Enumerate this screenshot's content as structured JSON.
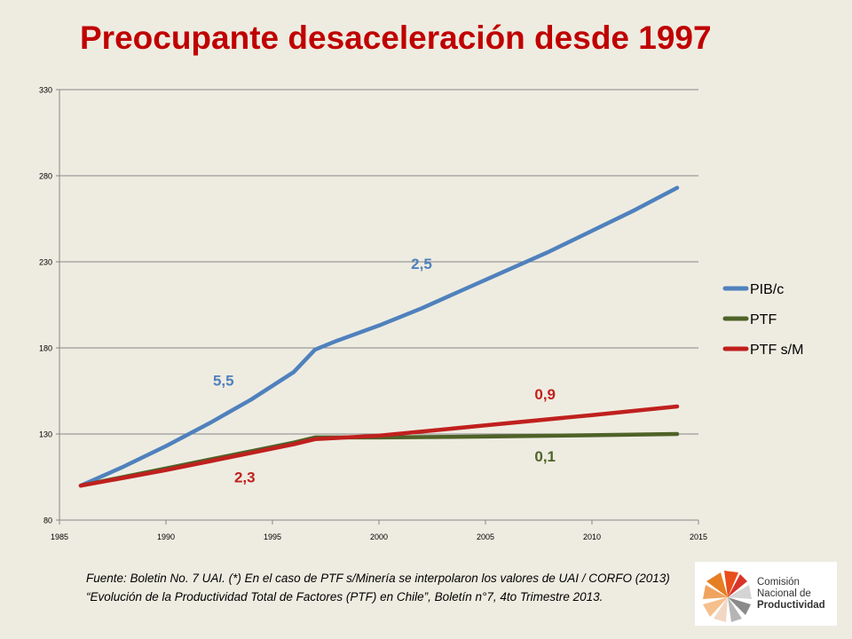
{
  "title": "Preocupante desaceleración desde 1997",
  "source_note": "Fuente: Boletin No. 7 UAI. (*) En el caso de PTF s/Minería se interpolaron los valores de UAI / CORFO (2013) “Evolución de la Productividad Total de Factores (PTF) en Chile”, Boletín n°7, 4to Trimestre 2013.",
  "logo": {
    "line1": "Comisión",
    "line2": "Nacional de",
    "line3": "Productividad"
  },
  "chart_data": {
    "type": "line",
    "xlim": [
      1985,
      2015
    ],
    "ylim": [
      80,
      330
    ],
    "x_ticks": [
      1985,
      1990,
      1995,
      2000,
      2005,
      2010,
      2015
    ],
    "y_ticks": [
      80,
      130,
      180,
      230,
      280,
      330
    ],
    "grid": "horizontal",
    "legend_position": "right",
    "series": [
      {
        "name": "PIB/c",
        "color": "#4f81bd",
        "points": [
          [
            1986,
            100
          ],
          [
            1988,
            111
          ],
          [
            1990,
            123
          ],
          [
            1992,
            136
          ],
          [
            1994,
            150
          ],
          [
            1996,
            166
          ],
          [
            1997,
            179
          ],
          [
            1998,
            184
          ],
          [
            2000,
            193
          ],
          [
            2002,
            203
          ],
          [
            2004,
            214
          ],
          [
            2006,
            225
          ],
          [
            2008,
            236
          ],
          [
            2010,
            248
          ],
          [
            2012,
            260
          ],
          [
            2014,
            273
          ]
        ]
      },
      {
        "name": "PTF",
        "color": "#4f6228",
        "points": [
          [
            1986,
            100
          ],
          [
            1988,
            105
          ],
          [
            1990,
            110
          ],
          [
            1992,
            115
          ],
          [
            1994,
            120
          ],
          [
            1996,
            125
          ],
          [
            1997,
            128
          ],
          [
            2000,
            128
          ],
          [
            2005,
            128.5
          ],
          [
            2010,
            129.3
          ],
          [
            2014,
            130
          ]
        ]
      },
      {
        "name": "PTF s/M",
        "color": "#c0201e",
        "points": [
          [
            1986,
            100
          ],
          [
            1988,
            104.5
          ],
          [
            1990,
            109
          ],
          [
            1992,
            114
          ],
          [
            1994,
            119
          ],
          [
            1996,
            124
          ],
          [
            1997,
            127
          ],
          [
            2000,
            129
          ],
          [
            2005,
            135
          ],
          [
            2010,
            141
          ],
          [
            2014,
            146
          ]
        ]
      }
    ],
    "annotations": [
      {
        "text": "5,5",
        "color": "#4f81bd",
        "x": 1992.7,
        "y": 158
      },
      {
        "text": "2,5",
        "color": "#4f81bd",
        "x": 2002.0,
        "y": 226
      },
      {
        "text": "2,3",
        "color": "#c0201e",
        "x": 1993.7,
        "y": 102
      },
      {
        "text": "0,9",
        "color": "#c0201e",
        "x": 2007.8,
        "y": 150
      },
      {
        "text": "0,1",
        "color": "#4f6228",
        "x": 2007.8,
        "y": 114
      }
    ]
  }
}
